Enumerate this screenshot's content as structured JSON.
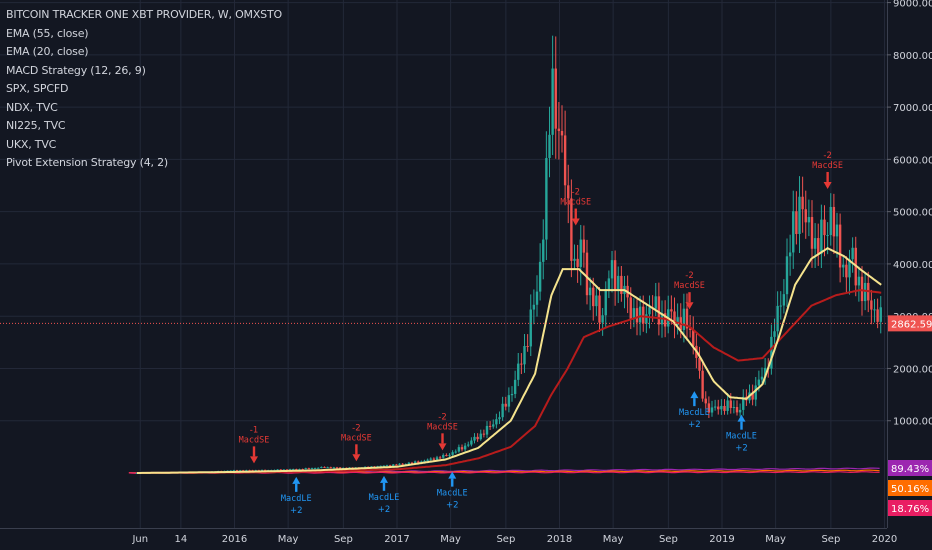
{
  "legend": {
    "symbol": "BITCOIN TRACKER ONE XBT PROVIDER, W, OMXSTO",
    "studies": [
      "EMA (55, close)",
      "EMA (20, close)",
      "MACD Strategy (12, 26, 9)",
      "SPX, SPCFD",
      "NDX, TVC",
      "NI225, TVC",
      "UKX, TVC",
      "Pivot Extension Strategy (4, 2)"
    ]
  },
  "colors": {
    "background": "#131722",
    "grid": "#232838",
    "axis_text": "#d1d4dc",
    "up": "#26a69a",
    "down": "#ef5350",
    "ema20": "#f5e38d",
    "ema55": "#b71c1c",
    "short_signal": "#e53935",
    "long_signal": "#2196f3",
    "price_line": "#ef5350"
  },
  "chart_data": {
    "type": "candlestick",
    "unit": "%",
    "y_ticks": [
      "9000.00%",
      "8000.00%",
      "7000.00%",
      "6000.00%",
      "5000.00%",
      "4000.00%",
      "3000.00%",
      "2000.00%",
      "1000.00%"
    ],
    "ylim": [
      -500,
      9000
    ],
    "x_ticks": [
      "Jun",
      "14",
      "2016",
      "May",
      "Sep",
      "2017",
      "May",
      "Sep",
      "2018",
      "May",
      "Sep",
      "2019",
      "May",
      "Sep",
      "2020"
    ],
    "x_tick_times": [
      2015.42,
      2015.67,
      2016.0,
      2016.33,
      2016.67,
      2017.0,
      2017.33,
      2017.67,
      2018.0,
      2018.33,
      2018.67,
      2019.0,
      2019.33,
      2019.67,
      2020.0
    ],
    "xlim": [
      2015.17,
      2020.08
    ],
    "closes": [
      [
        2015.4,
        0
      ],
      [
        2015.6,
        5
      ],
      [
        2015.8,
        20
      ],
      [
        2016.0,
        50
      ],
      [
        2016.2,
        55
      ],
      [
        2016.4,
        75
      ],
      [
        2016.55,
        110
      ],
      [
        2016.7,
        95
      ],
      [
        2016.85,
        120
      ],
      [
        2017.0,
        160
      ],
      [
        2017.15,
        220
      ],
      [
        2017.3,
        330
      ],
      [
        2017.4,
        480
      ],
      [
        2017.5,
        700
      ],
      [
        2017.58,
        900
      ],
      [
        2017.66,
        1250
      ],
      [
        2017.72,
        1700
      ],
      [
        2017.78,
        2300
      ],
      [
        2017.82,
        2900
      ],
      [
        2017.86,
        3400
      ],
      [
        2017.89,
        4400
      ],
      [
        2017.92,
        5600
      ],
      [
        2017.94,
        6700
      ],
      [
        2017.96,
        7500
      ],
      [
        2017.98,
        7000
      ],
      [
        2018.01,
        6300
      ],
      [
        2018.04,
        5400
      ],
      [
        2018.07,
        4600
      ],
      [
        2018.1,
        3700
      ],
      [
        2018.14,
        4500
      ],
      [
        2018.18,
        3400
      ],
      [
        2018.22,
        3200
      ],
      [
        2018.26,
        3000
      ],
      [
        2018.3,
        3700
      ],
      [
        2018.34,
        3900
      ],
      [
        2018.38,
        3500
      ],
      [
        2018.42,
        3300
      ],
      [
        2018.46,
        3050
      ],
      [
        2018.5,
        2900
      ],
      [
        2018.55,
        3200
      ],
      [
        2018.6,
        3100
      ],
      [
        2018.65,
        2950
      ],
      [
        2018.7,
        3000
      ],
      [
        2018.75,
        2900
      ],
      [
        2018.8,
        2800
      ],
      [
        2018.84,
        2300
      ],
      [
        2018.87,
        1600
      ],
      [
        2018.9,
        1300
      ],
      [
        2018.94,
        1200
      ],
      [
        2018.98,
        1250
      ],
      [
        2019.02,
        1300
      ],
      [
        2019.06,
        1250
      ],
      [
        2019.1,
        1200
      ],
      [
        2019.14,
        1400
      ],
      [
        2019.18,
        1500
      ],
      [
        2019.22,
        1700
      ],
      [
        2019.26,
        1900
      ],
      [
        2019.3,
        2400
      ],
      [
        2019.34,
        3000
      ],
      [
        2019.38,
        3600
      ],
      [
        2019.42,
        4300
      ],
      [
        2019.45,
        4900
      ],
      [
        2019.48,
        5300
      ],
      [
        2019.52,
        4600
      ],
      [
        2019.55,
        4800
      ],
      [
        2019.58,
        4200
      ],
      [
        2019.61,
        4500
      ],
      [
        2019.64,
        4700
      ],
      [
        2019.67,
        5000
      ],
      [
        2019.7,
        4400
      ],
      [
        2019.73,
        4200
      ],
      [
        2019.76,
        3800
      ],
      [
        2019.8,
        4100
      ],
      [
        2019.84,
        3700
      ],
      [
        2019.87,
        3400
      ],
      [
        2019.9,
        3300
      ],
      [
        2019.93,
        3200
      ],
      [
        2019.96,
        3000
      ],
      [
        2019.98,
        2862.59
      ]
    ],
    "ema20": [
      [
        2015.4,
        0
      ],
      [
        2016.0,
        20
      ],
      [
        2016.5,
        50
      ],
      [
        2017.0,
        120
      ],
      [
        2017.3,
        260
      ],
      [
        2017.5,
        480
      ],
      [
        2017.7,
        1000
      ],
      [
        2017.85,
        1900
      ],
      [
        2017.95,
        3400
      ],
      [
        2018.02,
        3900
      ],
      [
        2018.12,
        3900
      ],
      [
        2018.25,
        3500
      ],
      [
        2018.4,
        3500
      ],
      [
        2018.55,
        3200
      ],
      [
        2018.7,
        2900
      ],
      [
        2018.85,
        2300
      ],
      [
        2018.95,
        1750
      ],
      [
        2019.05,
        1450
      ],
      [
        2019.15,
        1420
      ],
      [
        2019.25,
        1700
      ],
      [
        2019.35,
        2600
      ],
      [
        2019.45,
        3600
      ],
      [
        2019.55,
        4100
      ],
      [
        2019.65,
        4300
      ],
      [
        2019.75,
        4150
      ],
      [
        2019.85,
        3900
      ],
      [
        2019.98,
        3600
      ]
    ],
    "ema55": [
      [
        2015.4,
        0
      ],
      [
        2016.0,
        10
      ],
      [
        2016.5,
        30
      ],
      [
        2017.0,
        70
      ],
      [
        2017.3,
        150
      ],
      [
        2017.5,
        280
      ],
      [
        2017.7,
        500
      ],
      [
        2017.85,
        900
      ],
      [
        2017.95,
        1500
      ],
      [
        2018.05,
        2000
      ],
      [
        2018.15,
        2600
      ],
      [
        2018.3,
        2800
      ],
      [
        2018.5,
        3000
      ],
      [
        2018.65,
        2950
      ],
      [
        2018.8,
        2800
      ],
      [
        2018.95,
        2400
      ],
      [
        2019.1,
        2150
      ],
      [
        2019.25,
        2200
      ],
      [
        2019.4,
        2700
      ],
      [
        2019.55,
        3200
      ],
      [
        2019.7,
        3400
      ],
      [
        2019.85,
        3500
      ],
      [
        2019.98,
        3450
      ]
    ],
    "signals": [
      {
        "type": "short",
        "time": 2016.12,
        "value": 50,
        "label": "MacdSE",
        "qty": "-1"
      },
      {
        "type": "long",
        "time": 2016.38,
        "value": 60,
        "label": "MacdLE",
        "qty": "+2"
      },
      {
        "type": "short",
        "time": 2016.75,
        "value": 90,
        "label": "MacdSE",
        "qty": "-2"
      },
      {
        "type": "long",
        "time": 2016.92,
        "value": 80,
        "label": "MacdLE",
        "qty": "+2"
      },
      {
        "type": "short",
        "time": 2017.28,
        "value": 300,
        "label": "MacdSE",
        "qty": "-2"
      },
      {
        "type": "long",
        "time": 2017.34,
        "value": 160,
        "label": "MacdLE",
        "qty": "+2"
      },
      {
        "type": "short",
        "time": 2018.1,
        "value": 4600,
        "label": "MacdSE",
        "qty": "-2"
      },
      {
        "type": "short",
        "time": 2018.8,
        "value": 3000,
        "label": "MacdSE",
        "qty": "-2"
      },
      {
        "type": "long",
        "time": 2018.83,
        "value": 1700,
        "label": "MacdLE",
        "qty": "+2"
      },
      {
        "type": "long",
        "time": 2019.12,
        "value": 1250,
        "label": "MacdLE",
        "qty": "+2"
      },
      {
        "type": "short",
        "time": 2019.65,
        "value": 5300,
        "label": "MacdSE",
        "qty": "-2"
      }
    ],
    "last_price": {
      "value": 2862.59,
      "label": "2862.59%"
    },
    "comparison_labels": [
      {
        "value": 89.43,
        "label": "89.43%",
        "color": "#9c27b0"
      },
      {
        "value": 50.16,
        "label": "50.16%",
        "color": "#ff6d00"
      },
      {
        "value": 18.76,
        "label": "18.76%",
        "color": "#e91e63"
      }
    ]
  }
}
